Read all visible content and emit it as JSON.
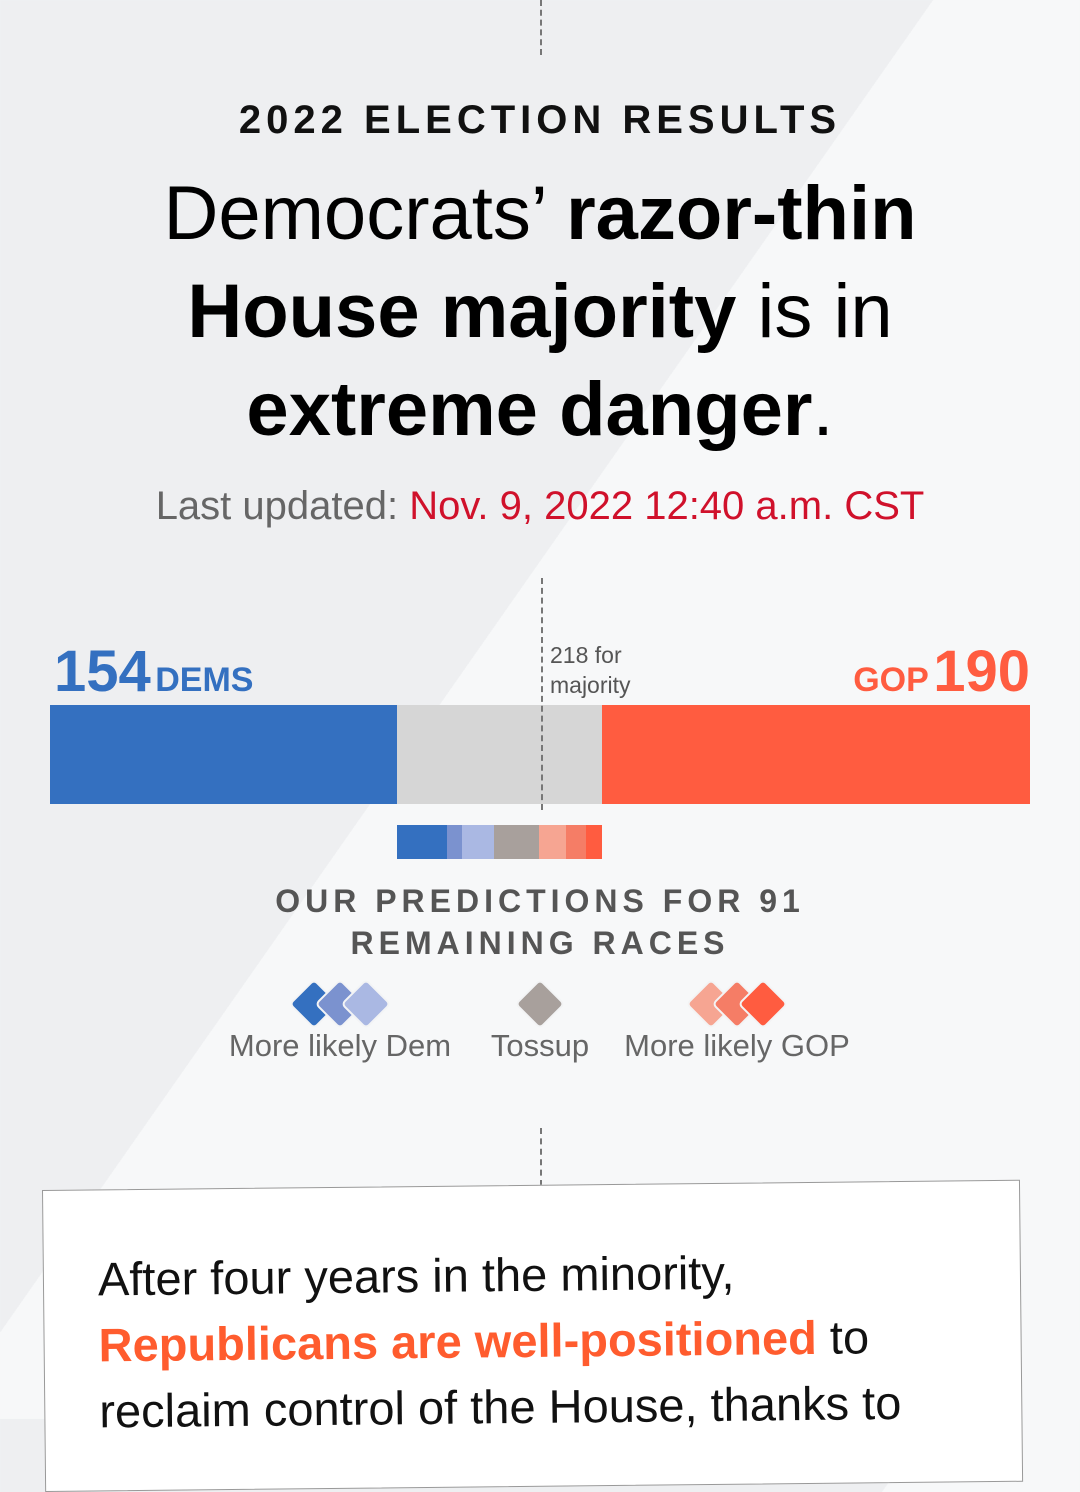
{
  "kicker": "2022 ELECTION RESULTS",
  "headline": [
    [
      {
        "text": "Democrats’ ",
        "bold": false
      },
      {
        "text": "razor-thin",
        "bold": true
      }
    ],
    [
      {
        "text": "House majority",
        "bold": true
      },
      {
        "text": " is in",
        "bold": false
      }
    ],
    [
      {
        "text": "extreme danger",
        "bold": true
      },
      {
        "text": ".",
        "bold": false
      }
    ]
  ],
  "updated": {
    "label": "Last updated:",
    "date": "Nov. 9, 2022 12:40 a.m. CST"
  },
  "seats": {
    "dems": {
      "count": 154,
      "label": "DEMS",
      "color": "#3470c0"
    },
    "gop": {
      "count": 190,
      "label": "GOP",
      "color": "#ff5c40"
    },
    "remaining_color": "#d6d6d6",
    "majority": {
      "value": 218,
      "label": "218 for majority"
    }
  },
  "predictions": {
    "title_before": "OUR PREDICTIONS FOR",
    "remaining": 91,
    "title_after": "REMAINING RACES",
    "segments": [
      {
        "value": 22,
        "color": "#3470c0"
      },
      {
        "value": 7,
        "color": "#7b92cf"
      },
      {
        "value": 14,
        "color": "#aab8e3"
      },
      {
        "value": 20,
        "color": "#a8a09c"
      },
      {
        "value": 12,
        "color": "#f6a592"
      },
      {
        "value": 9,
        "color": "#f57d66"
      },
      {
        "value": 7,
        "color": "#ff5c40"
      }
    ],
    "legend": [
      {
        "label": "More likely Dem",
        "colors": [
          "#3470c0",
          "#7b92cf",
          "#aab8e3"
        ]
      },
      {
        "label": "Tossup",
        "colors": [
          "#a8a09c"
        ]
      },
      {
        "label": "More likely GOP",
        "colors": [
          "#f6a592",
          "#f57d66",
          "#ff5c40"
        ]
      }
    ]
  },
  "card": {
    "lines": [
      [
        {
          "text": "After four years in the minority,",
          "highlight": false
        }
      ],
      [
        {
          "text": "Republicans are well-positioned",
          "highlight": true
        },
        {
          "text": " to",
          "highlight": false
        }
      ],
      [
        {
          "text": "reclaim control of the House, thanks to",
          "highlight": false
        }
      ]
    ],
    "highlight_color": "#ff5c2e"
  }
}
